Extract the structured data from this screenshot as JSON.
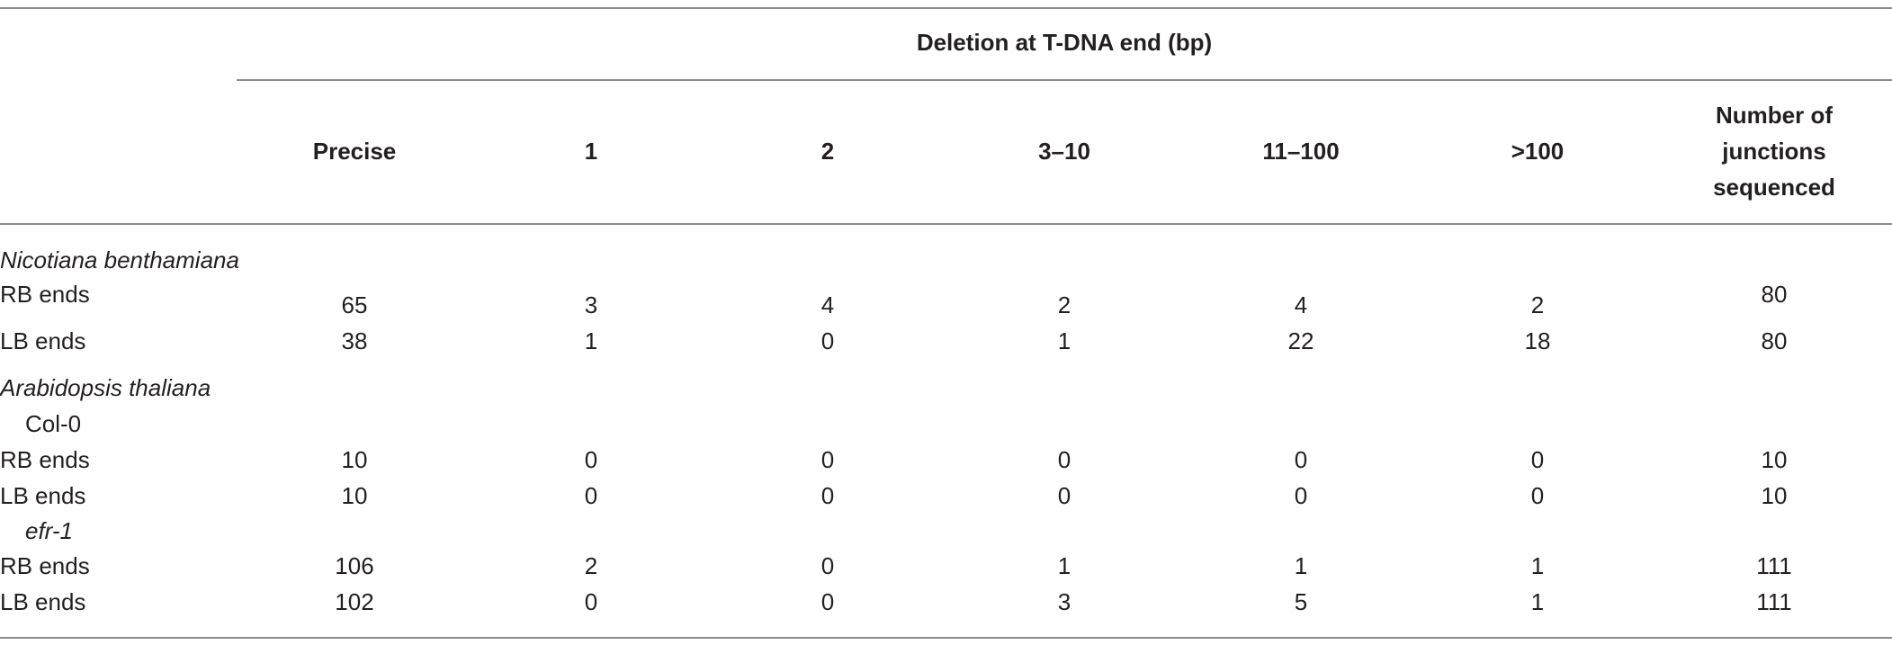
{
  "table": {
    "spanner": "Deletion at T-DNA end (bp)",
    "columns": [
      "Precise",
      "1",
      "2",
      "3–10",
      "11–100",
      ">100"
    ],
    "last_column_lines": [
      "Number of",
      "junctions",
      "sequenced"
    ],
    "groups": [
      {
        "name": "Nicotiana benthamiana",
        "rows": [
          {
            "label": "RB ends",
            "values": [
              "65",
              "3",
              "4",
              "2",
              "4",
              "2",
              "80"
            ]
          },
          {
            "label": "LB ends",
            "values": [
              "38",
              "1",
              "0",
              "1",
              "22",
              "18",
              "80"
            ]
          }
        ]
      },
      {
        "name": "Arabidopsis thaliana",
        "subgroups": [
          {
            "name": "Col-0",
            "rows": [
              {
                "label": "RB ends",
                "values": [
                  "10",
                  "0",
                  "0",
                  "0",
                  "0",
                  "0",
                  "10"
                ]
              },
              {
                "label": "LB ends",
                "values": [
                  "10",
                  "0",
                  "0",
                  "0",
                  "0",
                  "0",
                  "10"
                ]
              }
            ]
          },
          {
            "name": "efr-1",
            "rows": [
              {
                "label": "RB ends",
                "values": [
                  "106",
                  "2",
                  "0",
                  "1",
                  "1",
                  "1",
                  "111"
                ]
              },
              {
                "label": "LB ends",
                "values": [
                  "102",
                  "0",
                  "0",
                  "3",
                  "5",
                  "1",
                  "111"
                ]
              }
            ]
          }
        ]
      }
    ]
  }
}
